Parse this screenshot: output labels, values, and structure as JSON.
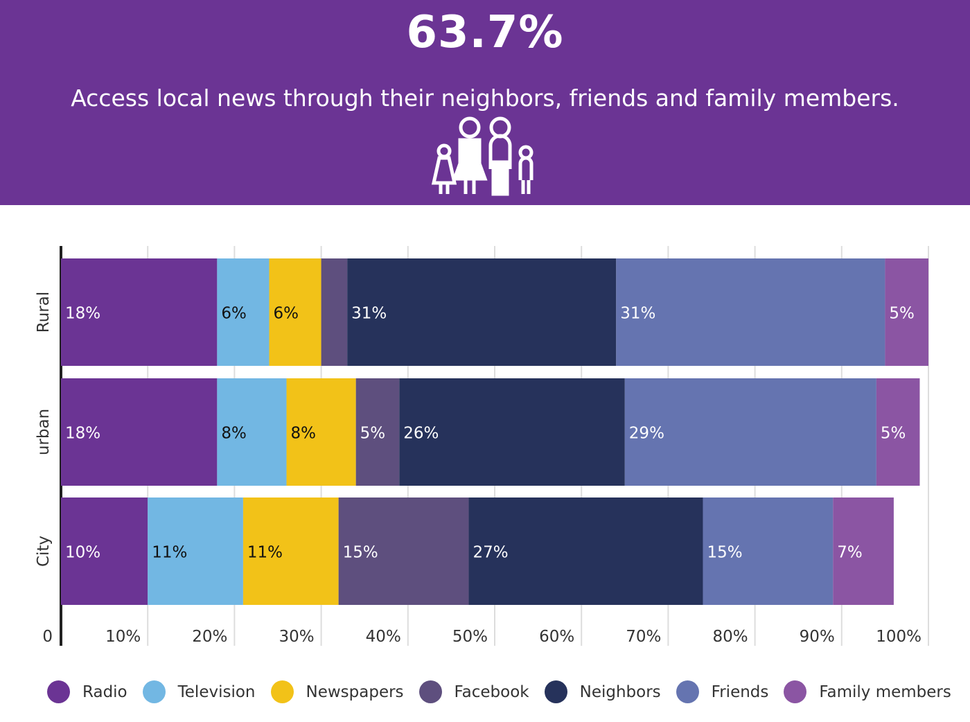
{
  "header": {
    "stat": "63.7%",
    "subtitle": "Access local news through their  neighbors, friends and family members.",
    "icon": "family-icon"
  },
  "chart_data": {
    "type": "bar",
    "orientation": "horizontal",
    "stacked": true,
    "categories": [
      "Rural",
      "urban",
      "City"
    ],
    "series": [
      {
        "name": "Radio",
        "color": "#6b3494",
        "values": [
          18,
          18,
          10
        ],
        "labels": [
          "18%",
          "18%",
          "10%"
        ]
      },
      {
        "name": "Television",
        "color": "#72b7e3",
        "values": [
          6,
          8,
          11
        ],
        "labels": [
          "6%",
          "8%",
          "11%"
        ]
      },
      {
        "name": "Newspapers",
        "color": "#f2c218",
        "values": [
          6,
          8,
          11
        ],
        "labels": [
          "6%",
          "8%",
          "11%"
        ]
      },
      {
        "name": "Facebook",
        "color": "#5e4f7e",
        "values": [
          3,
          5,
          15
        ],
        "labels": [
          "",
          "5%",
          "15%"
        ]
      },
      {
        "name": "Neighbors",
        "color": "#26325b",
        "values": [
          31,
          26,
          27
        ],
        "labels": [
          "31%",
          "26%",
          "27%"
        ]
      },
      {
        "name": "Friends",
        "color": "#6574b0",
        "values": [
          31,
          29,
          15
        ],
        "labels": [
          "31%",
          "29%",
          "15%"
        ]
      },
      {
        "name": "Family members",
        "color": "#8b55a3",
        "values": [
          5,
          5,
          7
        ],
        "labels": [
          "5%",
          "5%",
          "7%"
        ]
      }
    ],
    "xticks": [
      "0",
      "10%",
      "20%",
      "30%",
      "40%",
      "50%",
      "60%",
      "70%",
      "80%",
      "90%",
      "100%"
    ],
    "xlim": [
      0,
      100
    ],
    "grid": true,
    "legend": "bottom"
  }
}
